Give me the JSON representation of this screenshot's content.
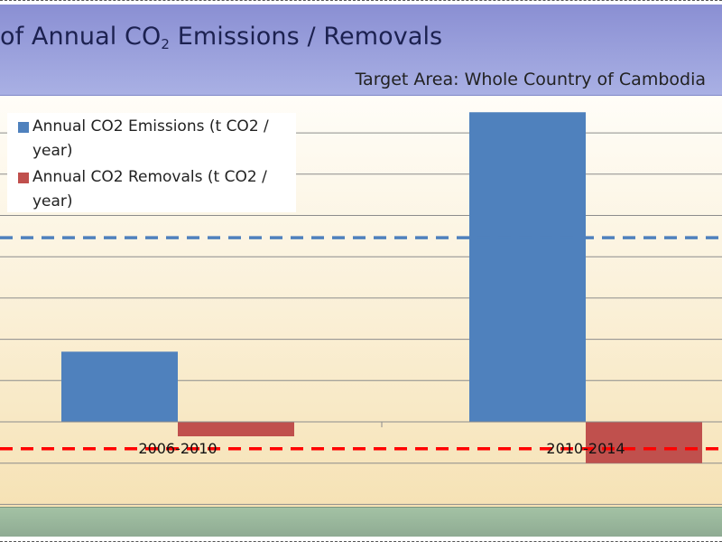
{
  "header": {
    "title_pre": "of  Annual CO",
    "title_sub": "2",
    "title_post": " Emissions / Removals",
    "subtitle": "Target Area: Whole Country of  Cambodia"
  },
  "colors": {
    "emissions": "#4f81bd",
    "removals": "#c0504d",
    "emissions_ref_line": "#4f81bd",
    "removals_ref_line": "#ff0000",
    "gridline": "#8c8c8c"
  },
  "chart_data": {
    "type": "bar",
    "title": "of  Annual CO2 Emissions / Removals",
    "subtitle": "Target Area: Whole Country of  Cambodia",
    "categories": [
      "2006-2010",
      "2010-2014"
    ],
    "series": [
      {
        "name": "Annual CO2 Emissions (t CO2 / year)",
        "values": [
          1.7,
          7.5
        ]
      },
      {
        "name": "Annual CO2 Removals (t CO2 / year)",
        "values": [
          -0.35,
          -1.0
        ]
      }
    ],
    "reference_lines": [
      {
        "series": "Annual CO2 Emissions (t CO2 / year)",
        "value": 4.46,
        "style": "dashed"
      },
      {
        "series": "Annual CO2 Removals (t CO2 / year)",
        "value": -0.65,
        "style": "dashed"
      }
    ],
    "ylim": [
      -2.0,
      7.5
    ],
    "grid": true,
    "legend": "top-left"
  }
}
